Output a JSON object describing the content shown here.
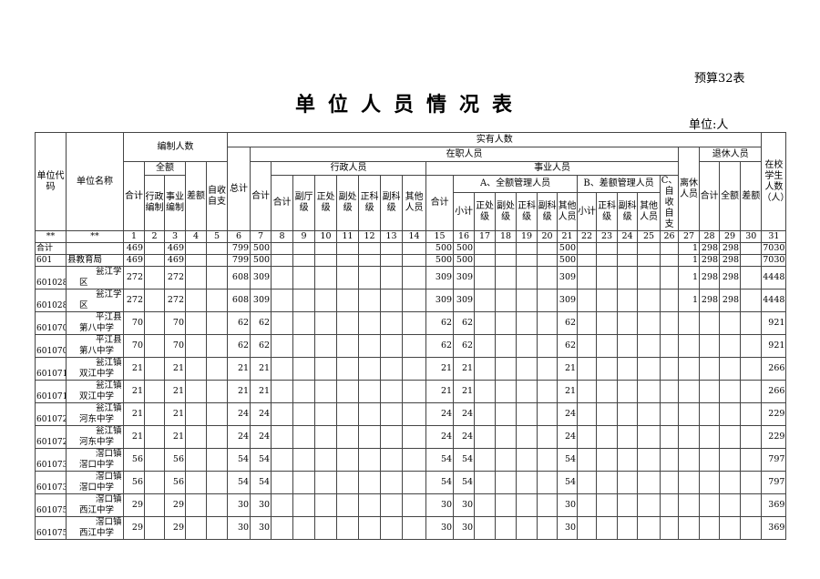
{
  "tag": "预算32表",
  "title": "单位人员情况表",
  "unit": "单位:人",
  "headers": {
    "code": "单位代码",
    "name": "单位名称",
    "bianzhi": "编制人数",
    "quane": "全额",
    "heji": "合计",
    "xingzheng_bz": "行政编制",
    "shiye_bz": "事业编制",
    "chae": "差额",
    "zishou": "自收自支",
    "shiyou": "实有人数",
    "zongji": "总计",
    "zaizhi": "在职人员",
    "xingzheng": "行政人员",
    "fuding": "副厅级",
    "zhengchu": "正处级",
    "fuchu": "副处级",
    "zhengke": "正科级",
    "fuke": "副科级",
    "qita": "其他人员",
    "shiye": "事业人员",
    "a_quane": "A、全额管理人员",
    "xiaoji": "小计",
    "b_chae": "B、差额管理人员",
    "c_zishou": "C、自收自支",
    "lixiu": "离休人员",
    "tuixiu": "退休人员",
    "quane2": "全额",
    "chae2": "差额",
    "xuesheng": "在校学生人数（人）"
  },
  "col_numbers": [
    "**",
    "**",
    "1",
    "2",
    "3",
    "4",
    "5",
    "6",
    "7",
    "8",
    "9",
    "10",
    "11",
    "12",
    "13",
    "14",
    "15",
    "16",
    "17",
    "18",
    "19",
    "20",
    "21",
    "22",
    "23",
    "24",
    "25",
    "26",
    "27",
    "28",
    "29",
    "30",
    "31"
  ],
  "rows": [
    {
      "code": "合计",
      "name": "",
      "v": [
        "469",
        "",
        "469",
        "",
        "",
        "799",
        "500",
        "",
        "",
        "",
        "",
        "",
        "",
        "",
        "500",
        "500",
        "",
        "",
        "",
        "",
        "500",
        "",
        "",
        "",
        "",
        "",
        "1",
        "298",
        "298",
        "",
        "7030"
      ]
    },
    {
      "code": "601",
      "name": "县教育局",
      "v": [
        "469",
        "",
        "469",
        "",
        "",
        "799",
        "500",
        "",
        "",
        "",
        "",
        "",
        "",
        "",
        "500",
        "500",
        "",
        "",
        "",
        "",
        "500",
        "",
        "",
        "",
        "",
        "",
        "1",
        "298",
        "298",
        "",
        "7030"
      ]
    },
    {
      "code": "601028",
      "name": "瓮江学区",
      "v": [
        "272",
        "",
        "272",
        "",
        "",
        "608",
        "309",
        "",
        "",
        "",
        "",
        "",
        "",
        "",
        "309",
        "309",
        "",
        "",
        "",
        "",
        "309",
        "",
        "",
        "",
        "",
        "",
        "1",
        "298",
        "298",
        "",
        "4448"
      ]
    },
    {
      "code": "601028",
      "name": "瓮江学区",
      "v": [
        "272",
        "",
        "272",
        "",
        "",
        "608",
        "309",
        "",
        "",
        "",
        "",
        "",
        "",
        "",
        "309",
        "309",
        "",
        "",
        "",
        "",
        "309",
        "",
        "",
        "",
        "",
        "",
        "1",
        "298",
        "298",
        "",
        "4448"
      ]
    },
    {
      "code": "601070",
      "name": "平江县第八中学",
      "v": [
        "70",
        "",
        "70",
        "",
        "",
        "62",
        "62",
        "",
        "",
        "",
        "",
        "",
        "",
        "",
        "62",
        "62",
        "",
        "",
        "",
        "",
        "62",
        "",
        "",
        "",
        "",
        "",
        "",
        "",
        "",
        "",
        "921"
      ]
    },
    {
      "code": "601070",
      "name": "平江县第八中学",
      "v": [
        "70",
        "",
        "70",
        "",
        "",
        "62",
        "62",
        "",
        "",
        "",
        "",
        "",
        "",
        "",
        "62",
        "62",
        "",
        "",
        "",
        "",
        "62",
        "",
        "",
        "",
        "",
        "",
        "",
        "",
        "",
        "",
        "921"
      ]
    },
    {
      "code": "601071",
      "name": "瓮江镇双江中学",
      "v": [
        "21",
        "",
        "21",
        "",
        "",
        "21",
        "21",
        "",
        "",
        "",
        "",
        "",
        "",
        "",
        "21",
        "21",
        "",
        "",
        "",
        "",
        "21",
        "",
        "",
        "",
        "",
        "",
        "",
        "",
        "",
        "",
        "266"
      ]
    },
    {
      "code": "601071",
      "name": "瓮江镇双江中学",
      "v": [
        "21",
        "",
        "21",
        "",
        "",
        "21",
        "21",
        "",
        "",
        "",
        "",
        "",
        "",
        "",
        "21",
        "21",
        "",
        "",
        "",
        "",
        "21",
        "",
        "",
        "",
        "",
        "",
        "",
        "",
        "",
        "",
        "266"
      ]
    },
    {
      "code": "601072",
      "name": "瓮江镇河东中学",
      "v": [
        "21",
        "",
        "21",
        "",
        "",
        "24",
        "24",
        "",
        "",
        "",
        "",
        "",
        "",
        "",
        "24",
        "24",
        "",
        "",
        "",
        "",
        "24",
        "",
        "",
        "",
        "",
        "",
        "",
        "",
        "",
        "",
        "229"
      ]
    },
    {
      "code": "601072",
      "name": "瓮江镇河东中学",
      "v": [
        "21",
        "",
        "21",
        "",
        "",
        "24",
        "24",
        "",
        "",
        "",
        "",
        "",
        "",
        "",
        "24",
        "24",
        "",
        "",
        "",
        "",
        "24",
        "",
        "",
        "",
        "",
        "",
        "",
        "",
        "",
        "",
        "229"
      ]
    },
    {
      "code": "601073",
      "name": "滘口镇滘口中学",
      "v": [
        "56",
        "",
        "56",
        "",
        "",
        "54",
        "54",
        "",
        "",
        "",
        "",
        "",
        "",
        "",
        "54",
        "54",
        "",
        "",
        "",
        "",
        "54",
        "",
        "",
        "",
        "",
        "",
        "",
        "",
        "",
        "",
        "797"
      ]
    },
    {
      "code": "601073",
      "name": "滘口镇滘口中学",
      "v": [
        "56",
        "",
        "56",
        "",
        "",
        "54",
        "54",
        "",
        "",
        "",
        "",
        "",
        "",
        "",
        "54",
        "54",
        "",
        "",
        "",
        "",
        "54",
        "",
        "",
        "",
        "",
        "",
        "",
        "",
        "",
        "",
        "797"
      ]
    },
    {
      "code": "601075",
      "name": "滘口镇西江中学",
      "v": [
        "29",
        "",
        "29",
        "",
        "",
        "30",
        "30",
        "",
        "",
        "",
        "",
        "",
        "",
        "",
        "30",
        "30",
        "",
        "",
        "",
        "",
        "30",
        "",
        "",
        "",
        "",
        "",
        "",
        "",
        "",
        "",
        "369"
      ]
    },
    {
      "code": "601075",
      "name": "滘口镇西江中学",
      "v": [
        "29",
        "",
        "29",
        "",
        "",
        "30",
        "30",
        "",
        "",
        "",
        "",
        "",
        "",
        "",
        "30",
        "30",
        "",
        "",
        "",
        "",
        "30",
        "",
        "",
        "",
        "",
        "",
        "",
        "",
        "",
        "",
        "369"
      ]
    }
  ]
}
